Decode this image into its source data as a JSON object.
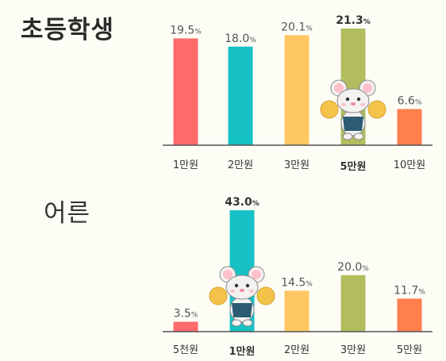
{
  "chart_data": [
    {
      "type": "bar",
      "title": "초등학생",
      "categories": [
        "1만원",
        "2만원",
        "3만원",
        "5만원",
        "10만원"
      ],
      "values": [
        19.5,
        18.0,
        20.1,
        21.3,
        6.6
      ],
      "value_labels": [
        "19.5",
        "18.0",
        "20.1",
        "21.3",
        "6.6"
      ],
      "unit": "%",
      "highlight_index": 3,
      "colors": [
        "#ff6b6b",
        "#15c1c4",
        "#ffc763",
        "#b1bd5e",
        "#ff7f4d"
      ],
      "highlight_label_color": "#a6b24a",
      "xlabel": "",
      "ylabel": "",
      "ylim": [
        0,
        21.3
      ]
    },
    {
      "type": "bar",
      "title": "어른",
      "categories": [
        "5천원",
        "1만원",
        "2만원",
        "3만원",
        "5만원"
      ],
      "values": [
        3.5,
        43.0,
        14.5,
        20.0,
        11.7
      ],
      "value_labels": [
        "3.5",
        "43.0",
        "14.5",
        "20.0",
        "11.7"
      ],
      "unit": "%",
      "highlight_index": 1,
      "colors": [
        "#ff6b6b",
        "#15c1c4",
        "#ffc763",
        "#b1bd5e",
        "#ff7f4d"
      ],
      "highlight_label_color": "#2bbbc4",
      "xlabel": "",
      "ylabel": "",
      "ylim": [
        0,
        43.0
      ]
    }
  ],
  "mascot": {
    "icon": "mouse-cheerleader-icon",
    "body_color": "#f4f1f1",
    "ear_color": "#ffc0cb",
    "vest_color": "#2b5c73",
    "pompom_color": "#f4c34a"
  }
}
